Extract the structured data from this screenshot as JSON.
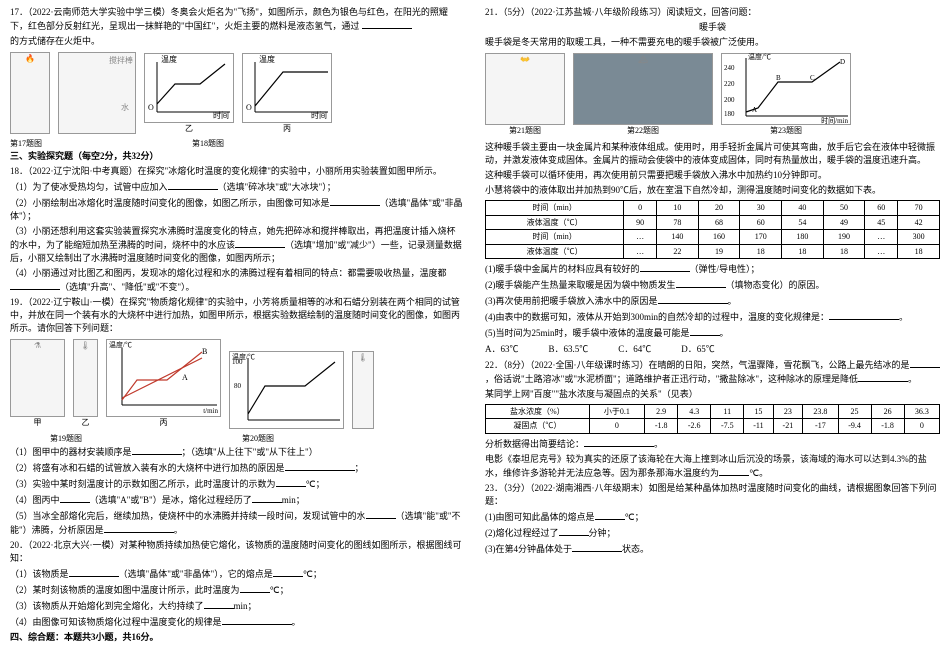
{
  "left": {
    "q17": {
      "num": "17．",
      "src": "（2022·云南师范大学实验中学三模）",
      "text": "冬奥会火炬名为\"飞扬\"，如图所示，颜色为银色与红色，在阳光的照耀下，红色部分反射红光，呈现出一抹鲜艳的\"中国红\"，火炬主要的燃料是液态氢气，通过",
      "text2": "的方式储存在火炬中。",
      "cap17": "第17题图",
      "cap18": "第18题图",
      "diag_labels": {
        "a": "搅拌棒",
        "b": "温度",
        "c": "温度",
        "d": "时间",
        "e": "时间",
        "f": "水",
        "g": "乙",
        "h": "丙"
      }
    },
    "sec3": "三、实验探究题（每空2分，共32分）",
    "q18": {
      "num": "18．",
      "src": "（2022·辽宁沈阳·中考真题）",
      "text": "在探究\"冰熔化时温度的变化规律\"的实验中，小丽所用实验装置如图甲所示。",
      "s1": "（1）为了使冰受热均匀，试管中应加入",
      "s1b": "（选填\"碎冰块\"或\"大冰块\"）；",
      "s2a": "（2）小丽绘制出冰熔化时温度随时间变化的图像，如图乙所示，由图像可知冰是",
      "s2b": "（选填\"晶体\"或\"非晶体\"）；",
      "s3a": "（3）小丽还想利用这套实验装置探究水沸腾时温度变化的特点，她先把碎冰和搅拌棒取出，再把温度计插入烧杯的水中，为了能缩短加热至沸腾的时间，烧杯中的水应该",
      "s3b": "（选填\"增加\"或\"减少\"）一些，记录测量数据后，小丽又绘制出了水沸腾时温度随时间变化的图像，如图丙所示；",
      "s4a": "（4）小丽通过对比图乙和图丙，发现冰的熔化过程和水的沸腾过程有着相同的特点：都需要吸收热量，温度都",
      "s4b": "（选填\"升高\"、\"降低\"或\"不变\"）。"
    },
    "q19": {
      "num": "19．",
      "src": "（2022·辽宁鞍山·一模）",
      "text": "在探究\"物质熔化规律\"的实验中，小芳将质量相等的冰和石蜡分别装在两个相同的试管中，并放在同一个装有水的大烧杯中进行加热，如图甲所示，根据实验数据绘制的温度随时间变化的图像，如图丙所示。请你回答下列问题：",
      "cap19": "第19题图",
      "cap20": "第20题图",
      "diag": {
        "a": "温度/℃",
        "b": "温度/℃",
        "c": "t/min",
        "d": "甲",
        "e": "乙",
        "f": "丙"
      },
      "s1a": "（1）图甲中的器材安装顺序是",
      "s1b": "；（选填\"从上往下\"或\"从下往上\"）",
      "s2a": "（2）将盛有冰和石蜡的试管放入装有水的大烧杯中进行加热的原因是",
      "s2b": "；",
      "s3a": "（3）实验中某时刻温度计的示数如图乙所示，此时温度计的示数为",
      "s3b": "℃；",
      "s4a": "（4）图丙中",
      "s4b": "（选填\"A\"或\"B\"）是冰，熔化过程经历了",
      "s4c": "min；",
      "s5a": "（5）当冰全部熔化完后，继续加热，使烧杯中的水沸腾并持续一段时间，发现试管中的水",
      "s5b": "（选填\"能\"或\"不能\"）沸腾，分析原因是",
      "s5c": "。"
    },
    "q20": {
      "num": "20．",
      "src": "（2022·北京大兴·一模）",
      "text": "对某种物质持续加热使它熔化，该物质的温度随时间变化的图线如图所示，根据图线可知：",
      "s1a": "（1）该物质是",
      "s1b": "（选填\"晶体\"或\"非晶体\"），它的熔点是",
      "s1c": "℃；",
      "s2a": "（2）某时刻该物质的温度如图中温度计所示，此时温度为",
      "s2b": "℃；",
      "s3a": "（3）该物质从开始熔化到完全熔化，大约持续了",
      "s3b": "min；",
      "s4a": "（4）由图像可知该物质熔化过程中温度变化的规律是",
      "s4b": "。"
    },
    "sec4": "四、综合题：本题共3小题，共16分。"
  },
  "right": {
    "q21": {
      "num": "21．",
      "pts": "（5分）",
      "src": "（2022·江苏盐城·八年级阶段练习）",
      "text": "阅读短文，回答问题：",
      "title": "暖手袋",
      "p1": "暖手袋是冬天常用的取暖工具，一种不需要充电的暖手袋被广泛使用。",
      "cap21": "第21题图",
      "cap22": "第22题图",
      "cap23": "第23题图",
      "chart": {
        "ylabel": "温度/℃",
        "xlabel": "时间/min",
        "yvals": [
          "180",
          "200",
          "220",
          "240"
        ],
        "xvals": [
          "1",
          "2",
          "3",
          "4",
          "5",
          "6",
          "7"
        ],
        "pts": [
          "A",
          "B",
          "C",
          "D"
        ]
      },
      "p2": "这种暖手袋主要由一块金属片和某种液体组成。使用时，用手轻折金属片可使其弯曲，放手后它会在液体中轻微振动，并激发液体变成固体。金属片的振动会使袋中的液体变成固体，同时有热量放出，暖手袋的温度迅速升高。",
      "p3": "这种暖手袋可以循环使用，再次使用前只需要把暖手袋放入沸水中加热约10分钟即可。",
      "p4": "小慧将袋中的液体取出并加热到90℃后，放在室温下自然冷却，测得温度随时间变化的数据如下表。"
    },
    "table1": {
      "h": [
        "时间（min）",
        "0",
        "10",
        "20",
        "30",
        "40",
        "50",
        "60",
        "70"
      ],
      "r1": [
        "液体温度（℃）",
        "90",
        "78",
        "68",
        "60",
        "54",
        "49",
        "45",
        "42"
      ],
      "h2": [
        "时间（min）",
        "…",
        "140",
        "160",
        "170",
        "180",
        "190",
        "…",
        "300"
      ],
      "r2": [
        "液体温度（℃）",
        "…",
        "22",
        "19",
        "18",
        "18",
        "18",
        "…",
        "18"
      ]
    },
    "q21s": {
      "s1a": "(1)暖手袋中金属片的材料应具有较好的",
      "s1b": "（弹性/导电性）；",
      "s2a": "(2)暖手袋能产生热量来取暖是因为袋中物质发生",
      "s2b": "（填物态变化）的原因。",
      "s3a": "(3)再次使用前把暖手袋放入沸水中的原因是",
      "s3b": "。",
      "s4a": "(4)由表中的数据可知，液体从开始到300min的自然冷却的过程中，温度的变化规律是：",
      "s4b": "。",
      "s5a": "(5)当时间为25min时，暖手袋中液体的温度最可能是",
      "s5b": "。",
      "optA": "A．63℃",
      "optB": "B．63.5℃",
      "optC": "C．64℃",
      "optD": "D．65℃"
    },
    "q22": {
      "num": "22．",
      "pts": "（8分）",
      "src": "（2022·全国·八年级课时练习）",
      "text": "在晴朗的日阳，突然，气温骤降，雪花飘飞，公路上最先结冰的是",
      "text2": "，俗话说\"土路溶冰\"或\"水泥桥面\"；道路维护者正迅行动，\"撒盐除冰\"，这种除冰的原理是降低",
      "text3": "。",
      "p2": "某同学上网\"百度\"\"盐水浓度与凝固点的关系\"（见表）"
    },
    "table2": {
      "h": [
        "盐水浓度（%）",
        "小于0.1",
        "2.9",
        "4.3",
        "11",
        "15",
        "23",
        "23.8",
        "25",
        "26",
        "36.3"
      ],
      "r": [
        "凝固点（℃）",
        "0",
        "-1.8",
        "-2.6",
        "-7.5",
        "-11",
        "-21",
        "-17",
        "-9.4",
        "-1.8",
        "0"
      ]
    },
    "q22s": {
      "s1a": "分析数据得出简要结论：",
      "s1b": "。",
      "p3a": "电影《泰坦尼克号》较为真实的还原了该海轮在大海上撞到冰山后沉没的场景，该海域的海水可以达到4.3%的盐水，维修许多游轮并无法应急等。因为那条那海水温度约为",
      "p3b": "℃。"
    },
    "q23": {
      "num": "23．",
      "pts": "（3分）",
      "src": "（2022·湖南湘西·八年级期末）",
      "text": "如图是给某种晶体加热时温度随时间变化的曲线，请根据图象回答下列问题：",
      "s1a": "(1)由图可知此晶体的熔点是",
      "s1b": "℃；",
      "s2a": "(2)熔化过程经过了",
      "s2b": "分钟；",
      "s3a": "(3)在第4分钟晶体处于",
      "s3b": "状态。"
    }
  }
}
